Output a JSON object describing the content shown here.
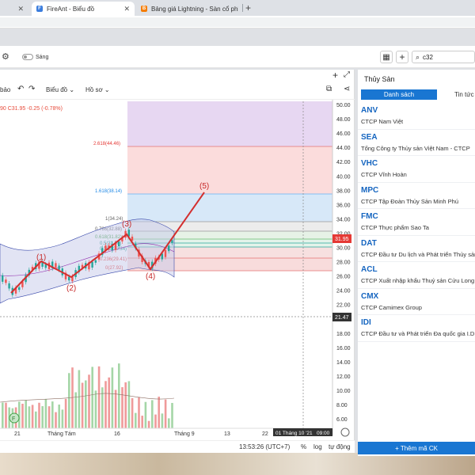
{
  "browser": {
    "tabs": [
      {
        "title": "FireAnt - Biểu đồ",
        "favicon": "F",
        "favicon_color": "#3b7ddd"
      },
      {
        "title": "Bảng giá Lightning - Sàn cổ phiế",
        "favicon": "B",
        "favicon_color": "#f57c00"
      }
    ],
    "close_glyph": "✕",
    "new_tab_glyph": "+"
  },
  "app": {
    "theme_label": "Sáng",
    "search_value": "c32",
    "grid_glyph": "▦",
    "plus_glyph": "+"
  },
  "chart_toolbar": {
    "left_partial": "bảo",
    "undo": "↶",
    "redo": "↷",
    "chart_menu": "Biểu đồ",
    "profile_menu": "Hồ sơ",
    "add": "+",
    "expand": "⤢",
    "save": "⧉",
    "share": "⋖"
  },
  "ohlc_text": "90  C31.95  -0.25  (-0.78%)",
  "chart_data": {
    "type": "candlestick",
    "y_ticks": [
      "50.00",
      "48.00",
      "46.00",
      "44.00",
      "42.00",
      "40.00",
      "38.00",
      "36.00",
      "34.00",
      "32.00",
      "30.00",
      "28.00",
      "26.00",
      "24.00",
      "22.00",
      "20.00",
      "18.00",
      "16.00",
      "14.00",
      "12.00",
      "10.00",
      "8.00",
      "6.00"
    ],
    "price_tag": "31.95",
    "cursor_price": "21.47",
    "x_ticks": [
      "21",
      "Tháng Tám",
      "16",
      "Tháng 9",
      "13",
      "22"
    ],
    "cursor_date": "01 Tháng 10 '21",
    "cursor_time": "09:00",
    "fib_levels": [
      {
        "label": "2.618(44.46)",
        "value": 44.46
      },
      {
        "label": "1.618(38.14)",
        "value": 38.14
      },
      {
        "label": "1(34.24)",
        "value": 34.24
      },
      {
        "label": "0.786(32.88)",
        "value": 32.88
      },
      {
        "label": "0.618(31.82)",
        "value": 31.82
      },
      {
        "label": "0.5(31.08)",
        "value": 31.08
      },
      {
        "label": "0.382(30.34)",
        "value": 30.34
      },
      {
        "label": "0.236(29.41)",
        "value": 29.41
      },
      {
        "label": "0(27.92)",
        "value": 27.92
      }
    ],
    "wave_labels": [
      "(1)",
      "(2)",
      "(3)",
      "(4)",
      "(5)"
    ],
    "event_marker": "F"
  },
  "status": {
    "time": "13:53:26 (UTC+7)",
    "percent": "%",
    "log": "log",
    "auto": "tự động"
  },
  "right_panel": {
    "title": "Thủy Sản",
    "tab_list": "Danh sách",
    "tab_news": "Tin tức",
    "items": [
      {
        "code": "ANV",
        "name": "CTCP Nam Việt"
      },
      {
        "code": "SEA",
        "name": "Tổng Công ty Thủy sản Việt Nam - CTCP"
      },
      {
        "code": "VHC",
        "name": "CTCP Vĩnh Hoàn"
      },
      {
        "code": "MPC",
        "name": "CTCP Tập Đoàn Thủy Sản Minh Phú"
      },
      {
        "code": "FMC",
        "name": "CTCP Thực phẩm Sao Ta"
      },
      {
        "code": "DAT",
        "name": "CTCP Đầu tư Du lịch và Phát triển Thủy sản"
      },
      {
        "code": "ACL",
        "name": "CTCP Xuất nhập khẩu Thuỷ sản Cửu Long"
      },
      {
        "code": "CMX",
        "name": "CTCP Camimex Group"
      },
      {
        "code": "IDI",
        "name": "CTCP Đầu tư và Phát triển Đa quốc gia I.D.I"
      }
    ],
    "add_button": "+ Thêm mã CK"
  }
}
